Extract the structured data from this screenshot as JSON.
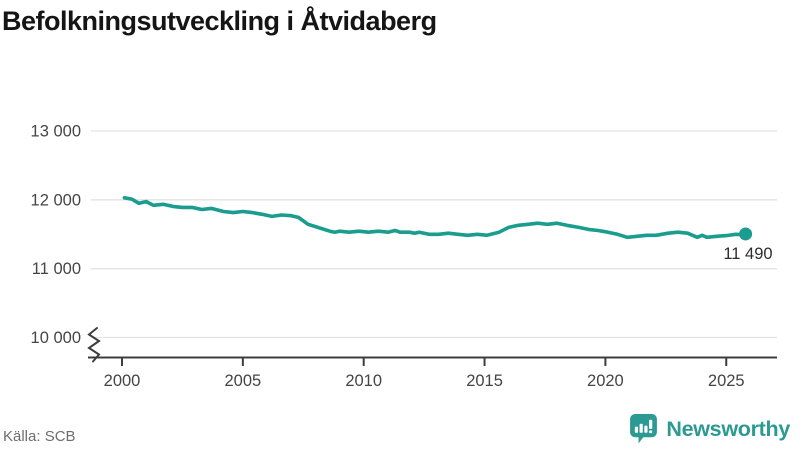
{
  "title": "Befolkningsutveckling i Åtvidaberg",
  "footer": {
    "source": "Källa: SCB"
  },
  "branding": {
    "name": "Newsworthy",
    "icon": "newsworthy-chart-bubble-icon",
    "color": "#2b9a92"
  },
  "colors": {
    "background": "#ffffff",
    "line": "#1a9c8e",
    "grid": "#e3e3e3",
    "axis": "#3d3d3d",
    "tick_text": "#454545",
    "annotation_text": "#2d2d2d",
    "title_text": "#151515",
    "muted_text": "#6e6e6e"
  },
  "chart_data": {
    "type": "line",
    "title": "Befolkningsutveckling i Åtvidaberg",
    "xlabel": "",
    "ylabel": "",
    "grid": "horizontal",
    "legend": "none",
    "axis_break": true,
    "x_ticks": [
      2000,
      2005,
      2010,
      2015,
      2020,
      2025
    ],
    "y_ticks": [
      {
        "value": 13000,
        "label": "13 000"
      },
      {
        "value": 12000,
        "label": "12 000"
      },
      {
        "value": 11000,
        "label": "11 000"
      },
      {
        "value": 10000,
        "label": "10 000"
      }
    ],
    "xlim": [
      1999.6,
      2027.1
    ],
    "ylim_visible": [
      10000,
      13000
    ],
    "last_point_label": "11 490",
    "last_point": [
      2025.8,
      11490
    ],
    "series": [
      {
        "name": "Befolkning",
        "color": "#1a9c8e",
        "points": [
          [
            2000.1,
            12030
          ],
          [
            2000.4,
            12010
          ],
          [
            2000.7,
            11950
          ],
          [
            2001.0,
            11975
          ],
          [
            2001.3,
            11920
          ],
          [
            2001.7,
            11935
          ],
          [
            2002.1,
            11905
          ],
          [
            2002.5,
            11890
          ],
          [
            2002.9,
            11890
          ],
          [
            2003.3,
            11860
          ],
          [
            2003.7,
            11875
          ],
          [
            2004.2,
            11830
          ],
          [
            2004.6,
            11815
          ],
          [
            2005.0,
            11830
          ],
          [
            2005.4,
            11815
          ],
          [
            2005.8,
            11790
          ],
          [
            2006.2,
            11760
          ],
          [
            2006.6,
            11780
          ],
          [
            2007.0,
            11770
          ],
          [
            2007.3,
            11745
          ],
          [
            2007.7,
            11645
          ],
          [
            2008.1,
            11600
          ],
          [
            2008.6,
            11545
          ],
          [
            2008.8,
            11530
          ],
          [
            2009.0,
            11545
          ],
          [
            2009.4,
            11530
          ],
          [
            2009.8,
            11545
          ],
          [
            2010.2,
            11530
          ],
          [
            2010.6,
            11545
          ],
          [
            2011.0,
            11530
          ],
          [
            2011.3,
            11555
          ],
          [
            2011.5,
            11530
          ],
          [
            2011.9,
            11530
          ],
          [
            2012.1,
            11515
          ],
          [
            2012.3,
            11530
          ],
          [
            2012.7,
            11500
          ],
          [
            2013.1,
            11500
          ],
          [
            2013.5,
            11515
          ],
          [
            2013.9,
            11500
          ],
          [
            2014.3,
            11485
          ],
          [
            2014.7,
            11500
          ],
          [
            2015.1,
            11485
          ],
          [
            2015.6,
            11530
          ],
          [
            2016.0,
            11600
          ],
          [
            2016.4,
            11630
          ],
          [
            2016.8,
            11645
          ],
          [
            2017.2,
            11660
          ],
          [
            2017.6,
            11645
          ],
          [
            2018.0,
            11660
          ],
          [
            2018.4,
            11630
          ],
          [
            2018.9,
            11600
          ],
          [
            2019.3,
            11570
          ],
          [
            2019.7,
            11555
          ],
          [
            2020.1,
            11530
          ],
          [
            2020.5,
            11500
          ],
          [
            2020.9,
            11455
          ],
          [
            2021.3,
            11470
          ],
          [
            2021.7,
            11485
          ],
          [
            2022.1,
            11485
          ],
          [
            2022.6,
            11515
          ],
          [
            2023.0,
            11530
          ],
          [
            2023.4,
            11515
          ],
          [
            2023.8,
            11455
          ],
          [
            2024.0,
            11485
          ],
          [
            2024.2,
            11455
          ],
          [
            2024.6,
            11470
          ],
          [
            2025.0,
            11480
          ],
          [
            2025.4,
            11500
          ],
          [
            2025.8,
            11490
          ]
        ]
      }
    ]
  }
}
